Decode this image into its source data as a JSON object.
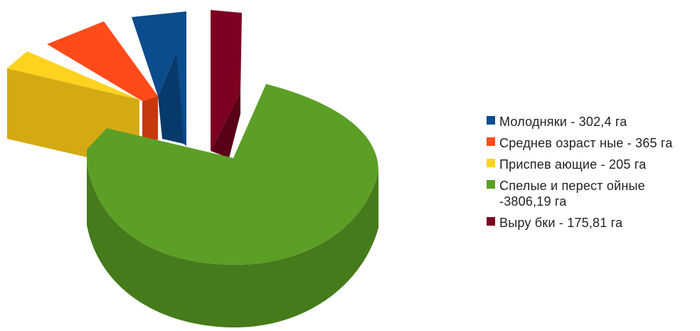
{
  "chart_data": {
    "type": "pie",
    "title": "",
    "slices": [
      {
        "label": "Молодняки - 302,4 га",
        "value": 302.4,
        "color": "#0b4c8c",
        "side": "#073a6a"
      },
      {
        "label": "Среднев озраст ные - 365 га",
        "value": 365,
        "color": "#ff4b1a",
        "side": "#c8380f"
      },
      {
        "label": "Приспев ающие - 205 га",
        "value": 205,
        "color": "#ffd21f",
        "side": "#d4aa14"
      },
      {
        "label": "Спелые и перест ойные -3806,19 га",
        "value": 3806.19,
        "color": "#5c9f26",
        "side": "#457b1b"
      },
      {
        "label": "Выру бки - 175,81 га",
        "value": 175.81,
        "color": "#7d0021",
        "side": "#590016"
      }
    ],
    "legend_position": "right",
    "style": "3d-exploded"
  }
}
